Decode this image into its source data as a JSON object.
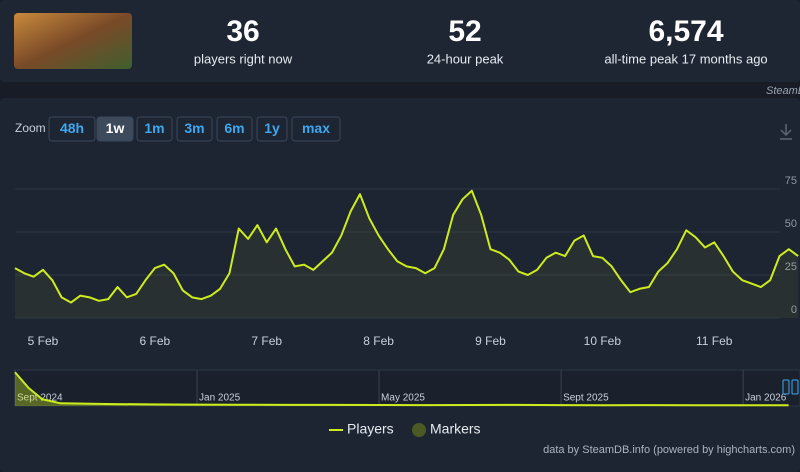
{
  "stats": [
    {
      "value": "36",
      "label": "players right now"
    },
    {
      "value": "52",
      "label": "24-hour peak"
    },
    {
      "value": "6,574",
      "label": "all-time peak 17 months ago"
    }
  ],
  "zoom": {
    "label": "Zoom",
    "buttons": [
      "48h",
      "1w",
      "1m",
      "3m",
      "6m",
      "1y",
      "max"
    ],
    "active_button": 1
  },
  "chart_data": [
    {
      "type": "line",
      "watermark": "SteamDB.info",
      "credits": "data by SteamDB.info (powered by highcharts.com)",
      "x": [
        -6,
        -4,
        -2,
        0,
        2,
        4,
        6,
        8,
        10,
        12,
        14,
        16,
        18,
        20,
        22,
        24,
        26,
        28,
        30,
        32,
        34,
        36,
        38,
        40,
        42,
        44,
        46,
        48,
        50,
        52,
        54,
        56,
        58,
        60,
        62,
        64,
        66,
        68,
        70,
        72,
        74,
        76,
        78,
        80,
        82,
        84,
        86,
        88,
        90,
        92,
        94,
        96,
        98,
        100,
        102,
        104,
        106,
        108,
        110,
        112,
        114,
        116,
        118,
        120,
        122,
        124,
        126,
        128,
        130,
        132,
        134,
        136,
        138,
        140,
        142,
        144,
        146,
        148,
        150,
        152,
        154,
        156,
        158,
        160,
        162
      ],
      "series": [
        {
          "name": "Players",
          "color": "#cdec1c",
          "values": [
            29,
            26,
            24,
            28,
            22,
            12,
            9,
            13,
            12,
            10,
            11,
            18,
            12,
            14,
            22,
            29,
            31,
            26,
            16,
            12,
            11,
            13,
            17,
            26,
            52,
            46,
            54,
            44,
            52,
            40,
            30,
            31,
            28,
            33,
            38,
            48,
            62,
            72,
            58,
            48,
            40,
            33,
            30,
            29,
            26,
            29,
            40,
            60,
            69,
            74,
            60,
            40,
            38,
            34,
            27,
            25,
            28,
            35,
            38,
            36,
            45,
            48,
            36,
            35,
            30,
            22,
            15,
            17,
            18,
            27,
            32,
            40,
            51,
            47,
            41,
            44,
            36,
            27,
            22,
            20,
            18,
            22,
            36,
            40,
            36
          ]
        }
      ],
      "markers": {
        "name": "Markers",
        "color": "#4b5a24"
      },
      "xlim": [
        -6,
        162.4
      ],
      "xticks": [
        {
          "value": 0,
          "label": "5 Feb"
        },
        {
          "value": 24,
          "label": "6 Feb"
        },
        {
          "value": 48,
          "label": "7 Feb"
        },
        {
          "value": 72,
          "label": "8 Feb"
        },
        {
          "value": 96,
          "label": "9 Feb"
        },
        {
          "value": 120,
          "label": "10 Feb"
        },
        {
          "value": 144,
          "label": "11 Feb"
        }
      ],
      "ylim": [
        0,
        100
      ],
      "yticks": [
        0,
        25,
        50,
        75
      ],
      "grid": true
    },
    {
      "type": "area",
      "color": "#cdec1c",
      "x": [
        0,
        0.3,
        0.6,
        1,
        2,
        3,
        4,
        5,
        6,
        7,
        8,
        9,
        10,
        11,
        12,
        13,
        14,
        15,
        16,
        17
      ],
      "values": [
        1500,
        800,
        300,
        120,
        90,
        70,
        60,
        55,
        50,
        48,
        45,
        40,
        45,
        50,
        40,
        35,
        38,
        36,
        34,
        33
      ],
      "xlim": [
        0,
        17.25
      ],
      "ylim": [
        0,
        1600
      ],
      "xticks": [
        {
          "value": 0,
          "label": "Sept 2024"
        },
        {
          "value": 4,
          "label": "Jan 2025"
        },
        {
          "value": 8,
          "label": "May 2025"
        },
        {
          "value": 12,
          "label": "Sept 2025"
        },
        {
          "value": 16,
          "label": "Jan 2026"
        }
      ]
    }
  ]
}
